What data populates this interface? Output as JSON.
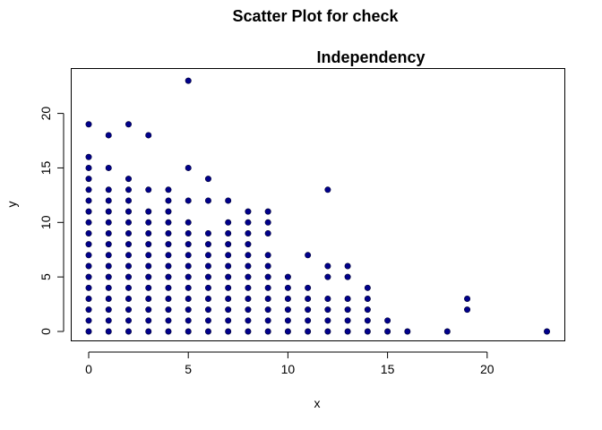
{
  "chart_data": {
    "type": "scatter",
    "title": "Scatter Plot for check",
    "subtitle": "Independency",
    "xlabel": "x",
    "ylabel": "y",
    "xlim": [
      0,
      23
    ],
    "ylim": [
      0,
      23
    ],
    "xticks": [
      0,
      5,
      10,
      15,
      20
    ],
    "yticks": [
      0,
      5,
      10,
      15,
      20
    ],
    "grid": false,
    "marker_color": "#00008B",
    "points": [
      [
        0,
        0
      ],
      [
        0,
        1
      ],
      [
        0,
        2
      ],
      [
        0,
        3
      ],
      [
        0,
        4
      ],
      [
        0,
        5
      ],
      [
        0,
        6
      ],
      [
        0,
        7
      ],
      [
        0,
        8
      ],
      [
        0,
        9
      ],
      [
        0,
        10
      ],
      [
        0,
        11
      ],
      [
        0,
        12
      ],
      [
        0,
        13
      ],
      [
        0,
        14
      ],
      [
        0,
        15
      ],
      [
        0,
        16
      ],
      [
        0,
        19
      ],
      [
        1,
        0
      ],
      [
        1,
        1
      ],
      [
        1,
        2
      ],
      [
        1,
        3
      ],
      [
        1,
        4
      ],
      [
        1,
        5
      ],
      [
        1,
        6
      ],
      [
        1,
        7
      ],
      [
        1,
        8
      ],
      [
        1,
        9
      ],
      [
        1,
        10
      ],
      [
        1,
        11
      ],
      [
        1,
        12
      ],
      [
        1,
        13
      ],
      [
        1,
        15
      ],
      [
        1,
        18
      ],
      [
        2,
        0
      ],
      [
        2,
        1
      ],
      [
        2,
        2
      ],
      [
        2,
        3
      ],
      [
        2,
        4
      ],
      [
        2,
        5
      ],
      [
        2,
        6
      ],
      [
        2,
        7
      ],
      [
        2,
        8
      ],
      [
        2,
        9
      ],
      [
        2,
        10
      ],
      [
        2,
        11
      ],
      [
        2,
        12
      ],
      [
        2,
        13
      ],
      [
        2,
        14
      ],
      [
        2,
        19
      ],
      [
        3,
        0
      ],
      [
        3,
        1
      ],
      [
        3,
        2
      ],
      [
        3,
        3
      ],
      [
        3,
        4
      ],
      [
        3,
        5
      ],
      [
        3,
        6
      ],
      [
        3,
        7
      ],
      [
        3,
        8
      ],
      [
        3,
        9
      ],
      [
        3,
        10
      ],
      [
        3,
        11
      ],
      [
        3,
        13
      ],
      [
        3,
        18
      ],
      [
        4,
        0
      ],
      [
        4,
        1
      ],
      [
        4,
        2
      ],
      [
        4,
        3
      ],
      [
        4,
        4
      ],
      [
        4,
        5
      ],
      [
        4,
        6
      ],
      [
        4,
        7
      ],
      [
        4,
        8
      ],
      [
        4,
        9
      ],
      [
        4,
        10
      ],
      [
        4,
        11
      ],
      [
        4,
        12
      ],
      [
        4,
        13
      ],
      [
        5,
        0
      ],
      [
        5,
        1
      ],
      [
        5,
        2
      ],
      [
        5,
        3
      ],
      [
        5,
        4
      ],
      [
        5,
        5
      ],
      [
        5,
        6
      ],
      [
        5,
        7
      ],
      [
        5,
        8
      ],
      [
        5,
        9
      ],
      [
        5,
        10
      ],
      [
        5,
        12
      ],
      [
        5,
        15
      ],
      [
        5,
        23
      ],
      [
        6,
        0
      ],
      [
        6,
        1
      ],
      [
        6,
        2
      ],
      [
        6,
        3
      ],
      [
        6,
        4
      ],
      [
        6,
        5
      ],
      [
        6,
        6
      ],
      [
        6,
        7
      ],
      [
        6,
        8
      ],
      [
        6,
        9
      ],
      [
        6,
        12
      ],
      [
        6,
        14
      ],
      [
        7,
        0
      ],
      [
        7,
        1
      ],
      [
        7,
        2
      ],
      [
        7,
        3
      ],
      [
        7,
        4
      ],
      [
        7,
        5
      ],
      [
        7,
        6
      ],
      [
        7,
        7
      ],
      [
        7,
        8
      ],
      [
        7,
        9
      ],
      [
        7,
        10
      ],
      [
        7,
        12
      ],
      [
        8,
        0
      ],
      [
        8,
        1
      ],
      [
        8,
        2
      ],
      [
        8,
        3
      ],
      [
        8,
        4
      ],
      [
        8,
        5
      ],
      [
        8,
        6
      ],
      [
        8,
        7
      ],
      [
        8,
        8
      ],
      [
        8,
        9
      ],
      [
        8,
        10
      ],
      [
        8,
        11
      ],
      [
        9,
        0
      ],
      [
        9,
        1
      ],
      [
        9,
        2
      ],
      [
        9,
        3
      ],
      [
        9,
        4
      ],
      [
        9,
        5
      ],
      [
        9,
        6
      ],
      [
        9,
        7
      ],
      [
        9,
        9
      ],
      [
        9,
        10
      ],
      [
        9,
        11
      ],
      [
        10,
        0
      ],
      [
        10,
        1
      ],
      [
        10,
        2
      ],
      [
        10,
        3
      ],
      [
        10,
        4
      ],
      [
        10,
        5
      ],
      [
        11,
        0
      ],
      [
        11,
        1
      ],
      [
        11,
        2
      ],
      [
        11,
        3
      ],
      [
        11,
        4
      ],
      [
        11,
        7
      ],
      [
        12,
        0
      ],
      [
        12,
        1
      ],
      [
        12,
        2
      ],
      [
        12,
        3
      ],
      [
        12,
        5
      ],
      [
        12,
        6
      ],
      [
        12,
        13
      ],
      [
        13,
        0
      ],
      [
        13,
        1
      ],
      [
        13,
        2
      ],
      [
        13,
        3
      ],
      [
        13,
        5
      ],
      [
        13,
        6
      ],
      [
        14,
        0
      ],
      [
        14,
        1
      ],
      [
        14,
        2
      ],
      [
        14,
        3
      ],
      [
        14,
        4
      ],
      [
        15,
        0
      ],
      [
        15,
        1
      ],
      [
        16,
        0
      ],
      [
        18,
        0
      ],
      [
        19,
        2
      ],
      [
        19,
        3
      ],
      [
        23,
        0
      ]
    ]
  }
}
